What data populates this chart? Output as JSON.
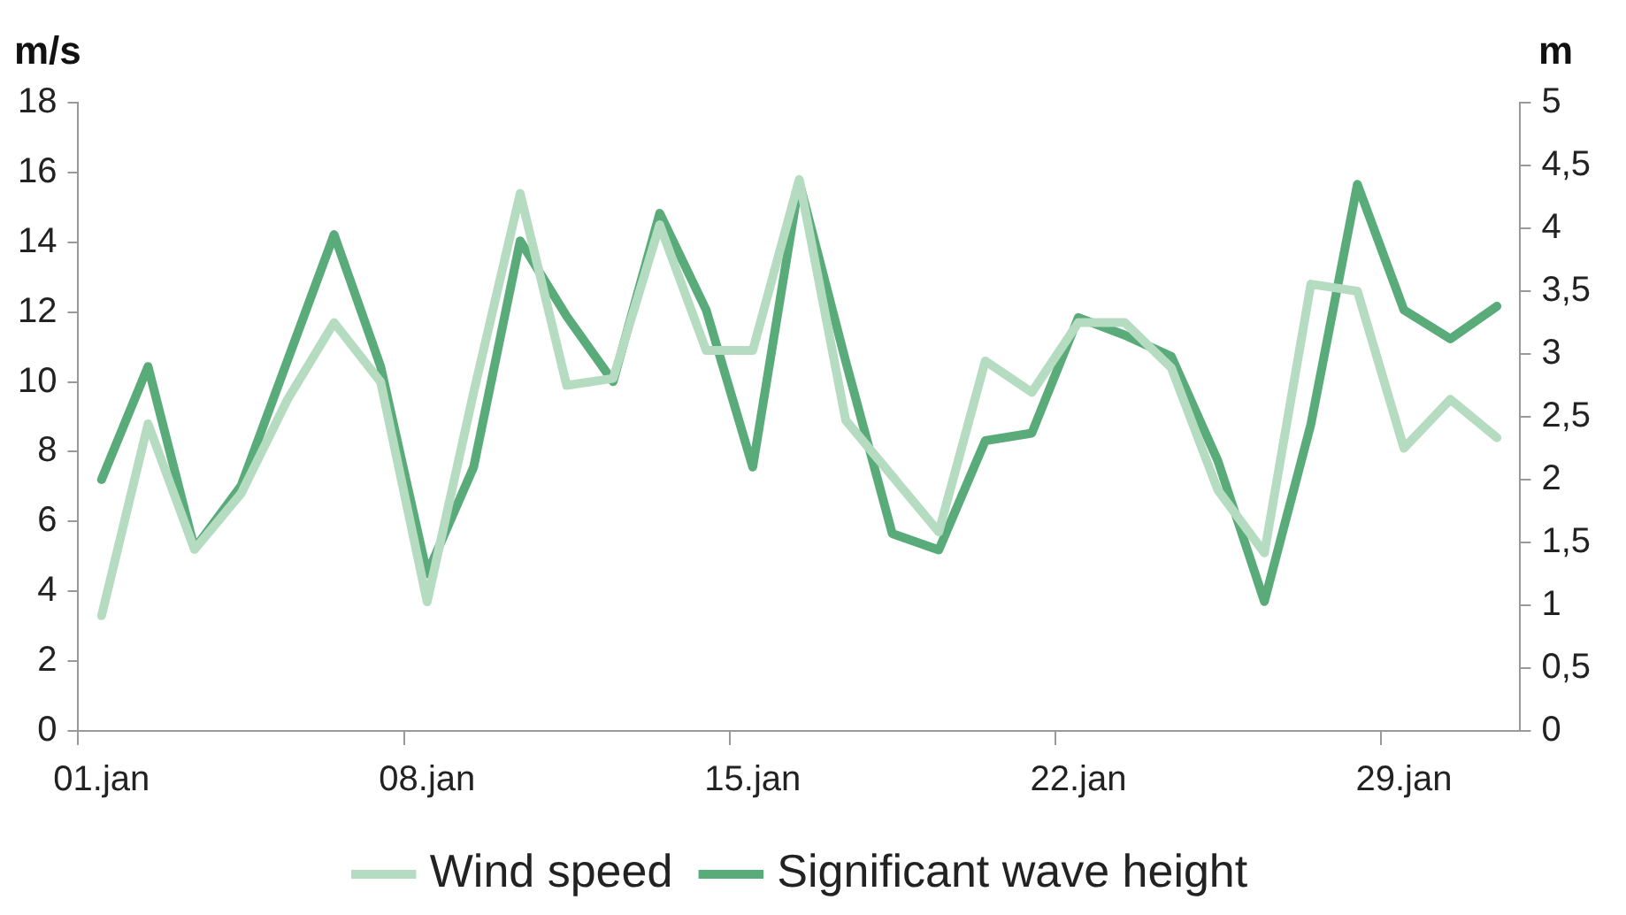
{
  "chart_data": {
    "type": "line",
    "ylabel": "m/s",
    "y2label": "m",
    "categories": [
      "01.jan",
      null,
      null,
      null,
      null,
      null,
      null,
      "08.jan",
      null,
      null,
      null,
      null,
      null,
      null,
      "15.jan",
      null,
      null,
      null,
      null,
      null,
      null,
      "22.jan",
      null,
      null,
      null,
      null,
      null,
      null,
      "29.jan",
      null,
      null
    ],
    "series": [
      {
        "name": "Wind speed",
        "color": "#b5dcc0",
        "values": [
          3.3,
          8.8,
          5.2,
          6.8,
          9.5,
          11.7,
          10.0,
          3.7,
          9.7,
          15.4,
          9.9,
          10.1,
          14.5,
          10.9,
          10.9,
          15.8,
          8.9,
          7.3,
          5.7,
          10.6,
          9.7,
          11.7,
          11.7,
          10.4,
          6.9,
          5.1,
          12.8,
          12.6,
          8.1,
          9.5,
          8.4
        ]
      },
      {
        "name": "Significant wave height",
        "color": "#5aab7a",
        "axis": "y2",
        "values": [
          2.0,
          2.9,
          1.45,
          1.95,
          2.95,
          3.95,
          2.9,
          1.25,
          2.1,
          3.9,
          3.3,
          2.78,
          4.12,
          3.35,
          2.1,
          4.37,
          2.94,
          1.57,
          1.44,
          2.31,
          2.37,
          3.29,
          3.15,
          2.98,
          2.15,
          1.03,
          2.44,
          4.35,
          3.35,
          3.12,
          3.38
        ]
      }
    ],
    "ylim": [
      0,
      18
    ],
    "yticks": [
      0,
      2,
      4,
      6,
      8,
      10,
      12,
      14,
      16,
      18
    ],
    "y2lim": [
      0,
      5
    ],
    "y2ticks": [
      0,
      {
        "value": 0.5,
        "label": "0,5"
      },
      1,
      {
        "value": 1.5,
        "label": "1,5"
      },
      2,
      {
        "value": 2.5,
        "label": "2,5"
      },
      3,
      {
        "value": 3.5,
        "label": "3,5"
      },
      4,
      {
        "value": 4.5,
        "label": "4,5"
      },
      5
    ],
    "grid": false,
    "legend": "bottom",
    "marker": "none",
    "line_style": "solid"
  }
}
